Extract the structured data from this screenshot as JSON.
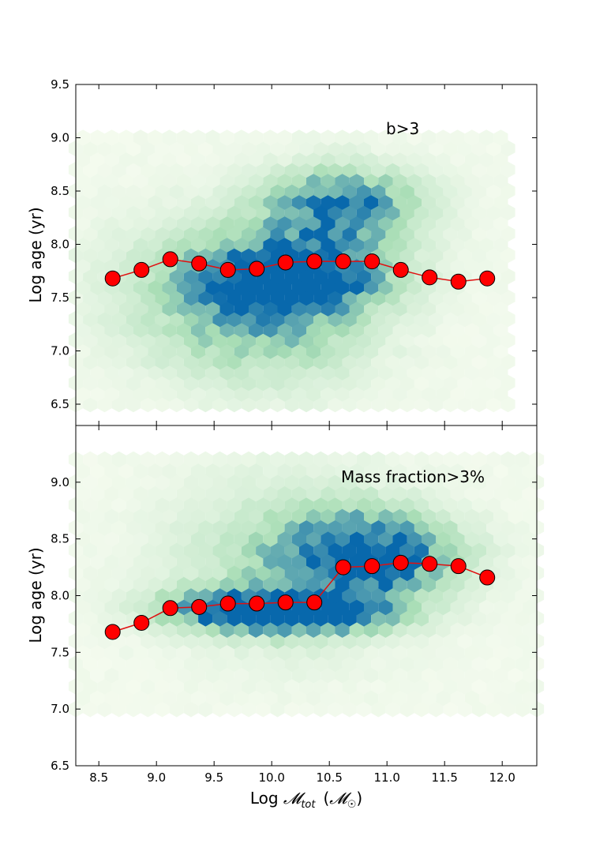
{
  "colors": {
    "marker_fill": "#ff0000",
    "marker_edge": "#000000",
    "line": "#e01010",
    "hex_low": "#f5fbef",
    "hex_mid": "#a8ddb5",
    "hex_high": "#0868ac"
  },
  "chart_data": [
    {
      "type": "scatter",
      "overlay": "hexbin density (GnBu colormap)",
      "annotation": "b>3",
      "ylabel": "Log age (yr)",
      "xlabel": "",
      "xlim": [
        8.3,
        12.3
      ],
      "ylim": [
        6.3,
        9.5
      ],
      "xticks": [],
      "yticks": [
        "6.5",
        "7.0",
        "7.5",
        "8.0",
        "8.5",
        "9.0",
        "9.5"
      ],
      "hex_range": {
        "x": [
          8.3,
          12.1
        ],
        "y": [
          6.5,
          9.0
        ]
      },
      "hex_blobs": [
        {
          "x": 10.6,
          "y": 8.35,
          "sx": 0.45,
          "sy": 0.25,
          "w": 0.9
        },
        {
          "x": 10.2,
          "y": 7.7,
          "sx": 0.55,
          "sy": 0.22,
          "w": 1.0
        },
        {
          "x": 9.7,
          "y": 7.6,
          "sx": 0.7,
          "sy": 0.45,
          "w": 0.45
        },
        {
          "x": 10.0,
          "y": 7.2,
          "sx": 0.6,
          "sy": 0.4,
          "w": 0.3
        }
      ],
      "series": [
        {
          "name": "running median",
          "x": [
            8.62,
            8.87,
            9.12,
            9.37,
            9.62,
            9.87,
            10.12,
            10.37,
            10.62,
            10.87,
            11.12,
            11.37,
            11.62,
            11.87
          ],
          "y": [
            7.68,
            7.76,
            7.86,
            7.82,
            7.76,
            7.77,
            7.83,
            7.84,
            7.84,
            7.84,
            7.76,
            7.69,
            7.65,
            7.68
          ]
        }
      ]
    },
    {
      "type": "scatter",
      "overlay": "hexbin density (GnBu colormap)",
      "annotation": "Mass fraction>3%",
      "ylabel": "Log age (yr)",
      "xlabel": "Log 𝓜tot  (𝓜☉)",
      "xlabel_main": "Log ",
      "xlabel_sym": "𝓜",
      "xlabel_sub": "tot",
      "xlabel_paren_open": "(",
      "xlabel_unit_sym": "𝓜",
      "xlabel_unit_sub": "☉",
      "xlabel_paren_close": ")",
      "xlim": [
        8.3,
        12.3
      ],
      "ylim": [
        6.5,
        9.5
      ],
      "xticks": [
        "8.5",
        "9.0",
        "9.5",
        "10.0",
        "10.5",
        "11.0",
        "11.5",
        "12.0"
      ],
      "yticks": [
        "6.5",
        "7.0",
        "7.5",
        "8.0",
        "8.5",
        "9.0"
      ],
      "hex_range": {
        "x": [
          8.3,
          12.3
        ],
        "y": [
          7.0,
          9.2
        ]
      },
      "hex_blobs": [
        {
          "x": 10.85,
          "y": 8.35,
          "sx": 0.5,
          "sy": 0.25,
          "w": 1.0
        },
        {
          "x": 10.2,
          "y": 7.85,
          "sx": 0.55,
          "sy": 0.12,
          "w": 1.0
        },
        {
          "x": 9.7,
          "y": 7.9,
          "sx": 0.5,
          "sy": 0.12,
          "w": 0.6
        },
        {
          "x": 10.2,
          "y": 8.3,
          "sx": 0.7,
          "sy": 0.5,
          "w": 0.35
        }
      ],
      "series": [
        {
          "name": "running median",
          "x": [
            8.62,
            8.87,
            9.12,
            9.37,
            9.62,
            9.87,
            10.12,
            10.37,
            10.62,
            10.87,
            11.12,
            11.37,
            11.62,
            11.87
          ],
          "y": [
            7.68,
            7.76,
            7.89,
            7.9,
            7.93,
            7.93,
            7.94,
            7.94,
            8.25,
            8.26,
            8.29,
            8.28,
            8.26,
            8.16
          ]
        }
      ]
    }
  ]
}
